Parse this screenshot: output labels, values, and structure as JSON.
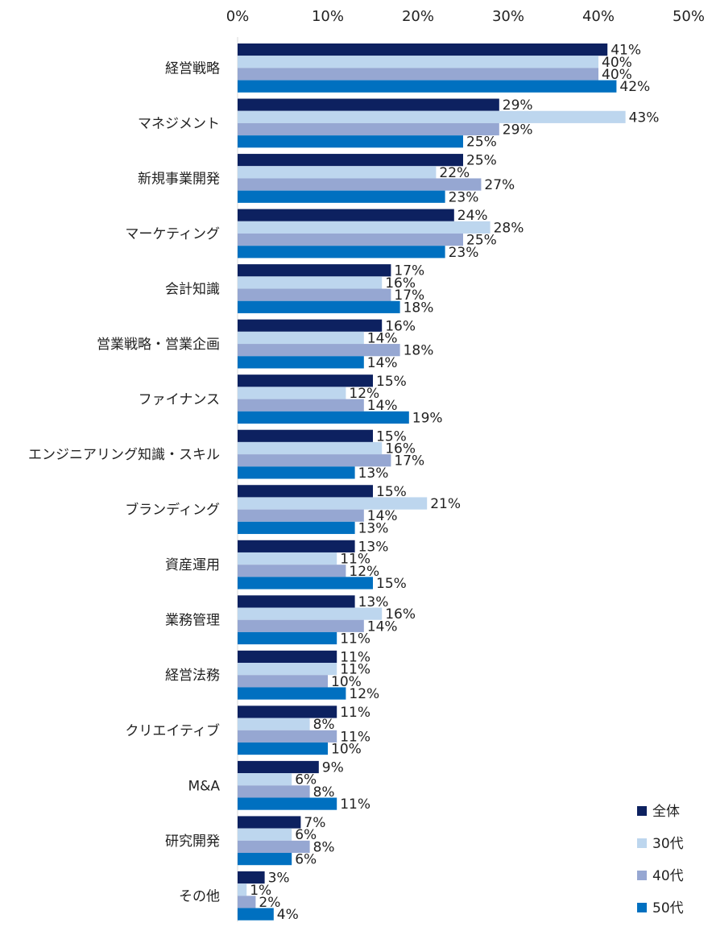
{
  "chart_data": {
    "type": "bar",
    "orientation": "horizontal",
    "title": "",
    "xlabel": "",
    "ylabel": "",
    "xlim": [
      0,
      50
    ],
    "x_ticks": [
      "0%",
      "10%",
      "20%",
      "30%",
      "40%",
      "50%"
    ],
    "x_tick_values": [
      0,
      10,
      20,
      30,
      40,
      50
    ],
    "value_suffix": "%",
    "categories": [
      "経営戦略",
      "マネジメント",
      "新規事業開発",
      "マーケティング",
      "会計知識",
      "営業戦略・営業企画",
      "ファイナンス",
      "エンジニアリング知識・スキル",
      "ブランディング",
      "資産運用",
      "業務管理",
      "経営法務",
      "クリエイティブ",
      "M&A",
      "研究開発",
      "その他"
    ],
    "series": [
      {
        "name": "全体",
        "color": "#0d2160",
        "values": [
          41,
          29,
          25,
          24,
          17,
          16,
          15,
          15,
          15,
          13,
          13,
          11,
          11,
          9,
          7,
          3
        ]
      },
      {
        "name": "30代",
        "color": "#bdd6ee",
        "values": [
          40,
          43,
          22,
          28,
          16,
          14,
          12,
          16,
          21,
          11,
          16,
          11,
          8,
          6,
          6,
          1
        ]
      },
      {
        "name": "40代",
        "color": "#96a7d2",
        "values": [
          40,
          29,
          27,
          25,
          17,
          18,
          14,
          17,
          14,
          12,
          14,
          10,
          11,
          8,
          8,
          2
        ]
      },
      {
        "name": "50代",
        "color": "#0070c0",
        "values": [
          42,
          25,
          23,
          23,
          18,
          14,
          19,
          13,
          13,
          15,
          11,
          12,
          10,
          11,
          6,
          4
        ]
      }
    ],
    "grid": false,
    "legend_position": "bottom-right"
  }
}
